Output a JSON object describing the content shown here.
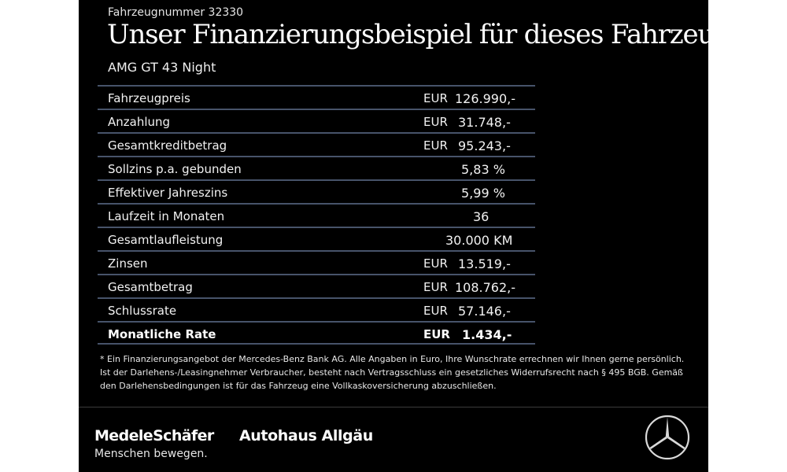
{
  "header": {
    "vehicle_number": "Fahrzeugnummer 32330",
    "title": "Unser Finanzierungsbeispiel für dieses Fahrzeug.*",
    "model": "AMG GT 43 Night"
  },
  "rows": [
    {
      "label": "Fahrzeugpreis",
      "currency": "EUR",
      "amount": "126.990,-"
    },
    {
      "label": "Anzahlung",
      "currency": "EUR",
      "amount": "31.748,-"
    },
    {
      "label": "Gesamtkreditbetrag",
      "currency": "EUR",
      "amount": "95.243,-"
    },
    {
      "label": "Sollzins p.a. gebunden",
      "currency": "",
      "amount": "5,83 %"
    },
    {
      "label": "Effektiver Jahreszins",
      "currency": "",
      "amount": "5,99 %"
    },
    {
      "label": "Laufzeit in Monaten",
      "currency": "",
      "amount": "36"
    },
    {
      "label": "Gesamtlaufleistung",
      "currency": "",
      "amount": "30.000 KM"
    },
    {
      "label": "Zinsen",
      "currency": "EUR",
      "amount": "13.519,-"
    },
    {
      "label": "Gesamtbetrag",
      "currency": "EUR",
      "amount": "108.762,-"
    },
    {
      "label": "Schlussrate",
      "currency": "EUR",
      "amount": "57.146,-"
    },
    {
      "label": "Monatliche Rate",
      "currency": "EUR",
      "amount": "1.434,-"
    }
  ],
  "footnote": "* Ein Finanzierungsangebot der Mercedes-Benz Bank AG. Alle Angaben in Euro, Ihre Wunschrate errechnen wir Ihnen gerne persönlich. Ist der Darlehens-/Leasingnehmer Verbraucher, besteht nach Vertragsschluss ein gesetzliches Widerrufsrecht nach § 495 BGB. Gemäß den Darlehensbedingungen ist für das Fahrzeug eine Vollkaskoversicherung abzuschließen.",
  "footer": {
    "dealer1_name": "MedeleSchäfer",
    "dealer1_slogan": "Menschen bewegen.",
    "dealer2_name": "Autohaus Allgäu",
    "logo_icon": "mercedes-star-icon"
  },
  "colors": {
    "background": "#000000",
    "text": "#ffffff",
    "row_divider": "#47536a",
    "page_margin": "#ffffff"
  }
}
